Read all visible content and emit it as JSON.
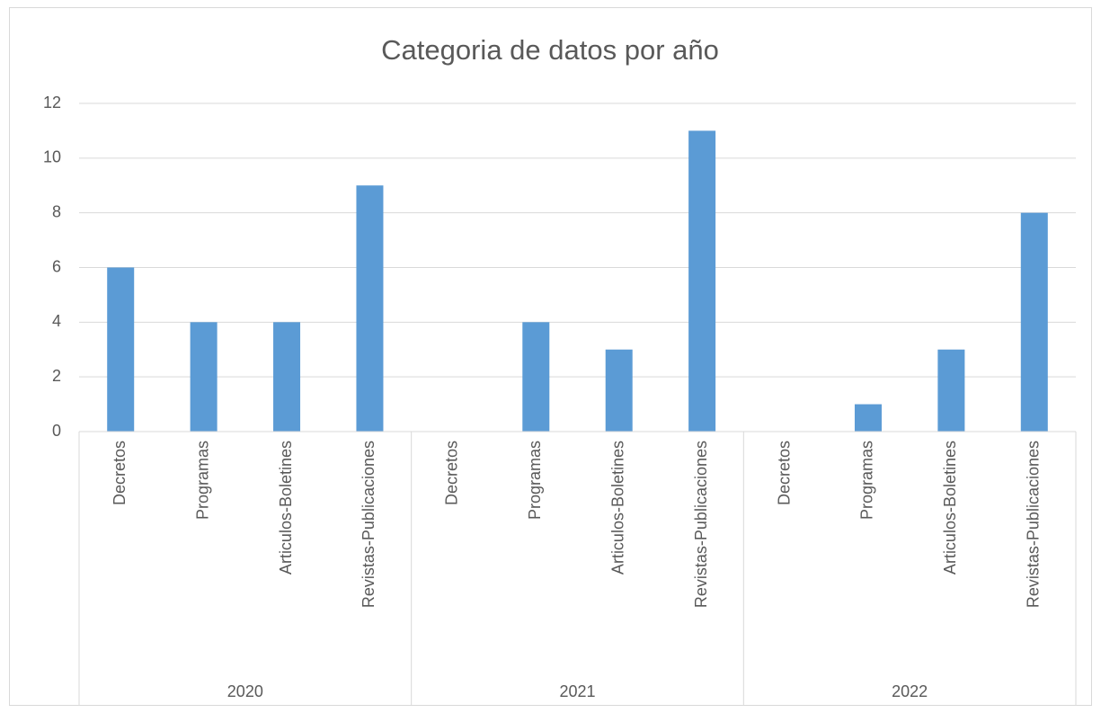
{
  "chart_data": {
    "type": "bar",
    "title": "Categoria de datos por año",
    "categories": [
      "Decretos",
      "Programas",
      "Articulos-Boletines",
      "Revistas-Publicaciones",
      "Decretos",
      "Programas",
      "Articulos-Boletines",
      "Revistas-Publicaciones",
      "Decretos",
      "Programas",
      "Articulos-Boletines",
      "Revistas-Publicaciones"
    ],
    "groups": [
      "2020",
      "2021",
      "2022"
    ],
    "values": [
      6,
      4,
      4,
      9,
      0,
      4,
      3,
      11,
      0,
      1,
      3,
      8
    ],
    "color": "#5b9bd5",
    "ylim": [
      0,
      12
    ],
    "yticks": [
      0,
      2,
      4,
      6,
      8,
      10,
      12
    ],
    "grid": true
  }
}
